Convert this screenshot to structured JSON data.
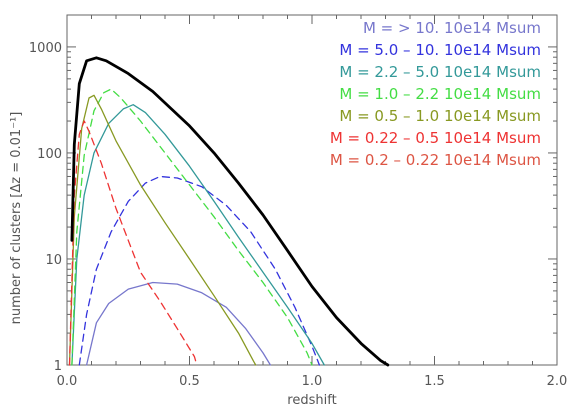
{
  "chart_data": {
    "type": "line",
    "title": "",
    "xlabel": "redshift",
    "ylabel": "number of clusters  [Δz = 0.01⁻¹]",
    "xlim": [
      0.0,
      2.0
    ],
    "ylim": [
      1,
      2000
    ],
    "yscale": "log",
    "grid": false,
    "legend_position": "top-right",
    "x_ticks": [
      0.0,
      0.5,
      1.0,
      1.5,
      2.0
    ],
    "x_tick_labels": [
      "0.0",
      "0.5",
      "1.0",
      "1.5",
      "2.0"
    ],
    "y_ticks": [
      1,
      10,
      100,
      1000
    ],
    "y_tick_labels": [
      "1",
      "10",
      "100",
      "1000"
    ],
    "series": [
      {
        "legend": "M =          > 10. 10e14 Msum",
        "color": "#7777cc",
        "dash": "solid",
        "width": 1.3,
        "points": [
          [
            0.08,
            1
          ],
          [
            0.12,
            2.5
          ],
          [
            0.17,
            3.8
          ],
          [
            0.25,
            5.2
          ],
          [
            0.35,
            6
          ],
          [
            0.45,
            5.8
          ],
          [
            0.55,
            4.8
          ],
          [
            0.65,
            3.5
          ],
          [
            0.73,
            2.2
          ],
          [
            0.8,
            1.3
          ],
          [
            0.83,
            1
          ]
        ]
      },
      {
        "legend": "M = 5.0  –   10. 10e14 Msum",
        "color": "#3333dd",
        "dash": "dashed",
        "width": 1.3,
        "points": [
          [
            0.05,
            1
          ],
          [
            0.08,
            3
          ],
          [
            0.12,
            8
          ],
          [
            0.18,
            18
          ],
          [
            0.25,
            35
          ],
          [
            0.32,
            52
          ],
          [
            0.38,
            60
          ],
          [
            0.45,
            58
          ],
          [
            0.55,
            48
          ],
          [
            0.65,
            32
          ],
          [
            0.75,
            18
          ],
          [
            0.85,
            8
          ],
          [
            0.93,
            3.5
          ],
          [
            1.0,
            1.5
          ],
          [
            1.03,
            1
          ]
        ]
      },
      {
        "legend": "M = 2.2  –   5.0 10e14 Msum",
        "color": "#339999",
        "dash": "solid",
        "width": 1.3,
        "points": [
          [
            0.02,
            1
          ],
          [
            0.04,
            10
          ],
          [
            0.07,
            40
          ],
          [
            0.11,
            100
          ],
          [
            0.17,
            190
          ],
          [
            0.23,
            260
          ],
          [
            0.27,
            285
          ],
          [
            0.32,
            240
          ],
          [
            0.4,
            150
          ],
          [
            0.5,
            75
          ],
          [
            0.6,
            35
          ],
          [
            0.7,
            16
          ],
          [
            0.8,
            7.5
          ],
          [
            0.9,
            3.5
          ],
          [
            1.0,
            1.6
          ],
          [
            1.05,
            1
          ]
        ]
      },
      {
        "legend": "M = 1.0  –   2.2 10e14 Msum",
        "color": "#44dd44",
        "dash": "dashed",
        "width": 1.3,
        "points": [
          [
            0.02,
            1
          ],
          [
            0.04,
            18
          ],
          [
            0.07,
            95
          ],
          [
            0.11,
            250
          ],
          [
            0.15,
            370
          ],
          [
            0.18,
            400
          ],
          [
            0.22,
            330
          ],
          [
            0.3,
            200
          ],
          [
            0.4,
            100
          ],
          [
            0.5,
            50
          ],
          [
            0.6,
            25
          ],
          [
            0.7,
            12
          ],
          [
            0.8,
            6
          ],
          [
            0.9,
            2.8
          ],
          [
            0.98,
            1.3
          ],
          [
            1.0,
            1
          ]
        ]
      },
      {
        "legend": "M = 0.5  –   1.0 10e14 Msum",
        "color": "#889922",
        "dash": "solid",
        "width": 1.3,
        "points": [
          [
            0.01,
            1
          ],
          [
            0.03,
            25
          ],
          [
            0.06,
            170
          ],
          [
            0.09,
            330
          ],
          [
            0.11,
            350
          ],
          [
            0.14,
            260
          ],
          [
            0.2,
            130
          ],
          [
            0.3,
            50
          ],
          [
            0.4,
            22
          ],
          [
            0.5,
            10
          ],
          [
            0.6,
            4.5
          ],
          [
            0.7,
            2
          ],
          [
            0.76,
            1.1
          ],
          [
            0.77,
            1
          ]
        ]
      },
      {
        "legend": "M = 0.22  –  0.5 10e14 Msum",
        "color": "#ee3333",
        "dash": "dashed",
        "width": 1.3,
        "points": [
          [
            0.01,
            1
          ],
          [
            0.03,
            40
          ],
          [
            0.05,
            150
          ],
          [
            0.07,
            200
          ],
          [
            0.09,
            160
          ],
          [
            0.14,
            80
          ],
          [
            0.2,
            30
          ],
          [
            0.3,
            7.5
          ],
          [
            0.38,
            4
          ],
          [
            0.45,
            2.2
          ],
          [
            0.52,
            1.2
          ],
          [
            0.53,
            1
          ]
        ]
      },
      {
        "legend": "M = 0.2  –  0.22 10e14 Msum",
        "color": "#dd5544",
        "dash": "solid",
        "width": 1.3,
        "points": []
      },
      {
        "legend": "",
        "color": "#000000",
        "dash": "solid",
        "width": 2.8,
        "points": [
          [
            0.02,
            15
          ],
          [
            0.03,
            120
          ],
          [
            0.05,
            450
          ],
          [
            0.08,
            740
          ],
          [
            0.12,
            790
          ],
          [
            0.16,
            740
          ],
          [
            0.25,
            560
          ],
          [
            0.35,
            380
          ],
          [
            0.5,
            180
          ],
          [
            0.6,
            100
          ],
          [
            0.7,
            52
          ],
          [
            0.8,
            26
          ],
          [
            0.9,
            12
          ],
          [
            1.0,
            5.5
          ],
          [
            1.1,
            2.8
          ],
          [
            1.2,
            1.6
          ],
          [
            1.28,
            1.1
          ],
          [
            1.31,
            1
          ]
        ]
      }
    ]
  }
}
